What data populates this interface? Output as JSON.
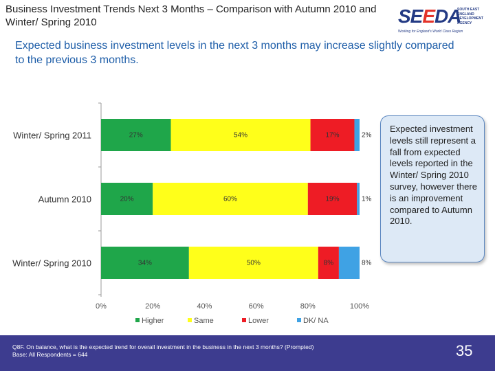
{
  "title": "Business Investment Trends Next 3 Months – Comparison with Autumn 2010 and Winter/ Spring 2010",
  "logo": {
    "word_part1": "SE",
    "word_part2": "E",
    "word_part3": "DA",
    "agency": "SOUTH EAST ENGLAND DEVELOPMENT AGENCY",
    "tagline": "Working for England's World Class Region"
  },
  "subtitle": "Expected business investment levels in the next 3 months may increase slightly compared to the previous 3 months.",
  "callout": "Expected investment levels still represent a fall from expected levels reported in the Winter/ Spring 2010 survey, however there is an improvement compared to Autumn 2010.",
  "footer": {
    "question": "Q8F. On balance, what is the expected trend for overall investment in the business in the next 3 months? (Prompted)",
    "base": "Base: All Respondents = 644",
    "page_number": "35"
  },
  "colors": {
    "higher": "#1fa64a",
    "same": "#ffff1a",
    "lower": "#ee1c25",
    "dk": "#3fa2e4",
    "title_blue": "#1d5da8",
    "footer_bg": "#3d3c8f"
  },
  "chart_data": {
    "type": "bar",
    "orientation": "horizontal",
    "stacked": true,
    "categories": [
      "Winter/ Spring 2011",
      "Autumn 2010",
      "Winter/ Spring 2010"
    ],
    "series": [
      {
        "name": "Higher",
        "values": [
          27,
          20,
          34
        ],
        "labels": [
          "27%",
          "20%",
          "34%"
        ]
      },
      {
        "name": "Same",
        "values": [
          54,
          60,
          50
        ],
        "labels": [
          "54%",
          "60%",
          "50%"
        ]
      },
      {
        "name": "Lower",
        "values": [
          17,
          19,
          8
        ],
        "labels": [
          "17%",
          "19%",
          "8%"
        ]
      },
      {
        "name": "DK/ NA",
        "values": [
          2,
          1,
          8
        ],
        "labels": [
          "2%",
          "1%",
          "8%"
        ]
      }
    ],
    "xlim": [
      0,
      100
    ],
    "xticks": [
      "0%",
      "20%",
      "40%",
      "60%",
      "80%",
      "100%"
    ],
    "legend_position": "bottom"
  }
}
